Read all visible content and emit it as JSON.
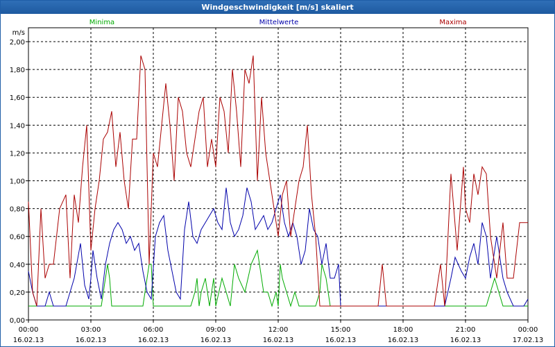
{
  "window": {
    "title": "Windgeschwindigkeit [m/s] skaliert"
  },
  "chart_data": {
    "type": "line",
    "title": "Windgeschwindigkeit [m/s] skaliert",
    "ylabel": "m/s",
    "xlabel": "",
    "ylim": [
      0,
      2.1
    ],
    "xlim_hours": [
      0,
      24
    ],
    "y_ticks": [
      "0,00",
      "0,20",
      "0,40",
      "0,60",
      "0,80",
      "1,00",
      "1,20",
      "1,40",
      "1,60",
      "1,80",
      "2,00"
    ],
    "y_tick_values": [
      0,
      0.2,
      0.4,
      0.6,
      0.8,
      1.0,
      1.2,
      1.4,
      1.6,
      1.8,
      2.0
    ],
    "x_ticks": [
      {
        "time": "00:00",
        "date": "16.02.13"
      },
      {
        "time": "03:00",
        "date": "16.02.13"
      },
      {
        "time": "06:00",
        "date": "16.02.13"
      },
      {
        "time": "09:00",
        "date": "16.02.13"
      },
      {
        "time": "12:00",
        "date": "16.02.13"
      },
      {
        "time": "15:00",
        "date": "16.02.13"
      },
      {
        "time": "18:00",
        "date": "16.02.13"
      },
      {
        "time": "21:00",
        "date": "16.02.13"
      },
      {
        "time": "00:00",
        "date": "17.02.13"
      }
    ],
    "x_tick_hours": [
      0,
      3,
      6,
      9,
      12,
      15,
      18,
      21,
      24
    ],
    "grid": true,
    "series": [
      {
        "name": "Minima",
        "color": "#00aa00",
        "x": [
          0,
          0.2,
          0.5,
          0.8,
          1.0,
          1.5,
          2.0,
          3.5,
          3.8,
          3.9,
          4.0,
          4.3,
          5.5,
          5.8,
          5.9,
          6.0,
          7.8,
          8.0,
          8.1,
          8.2,
          8.3,
          8.5,
          8.7,
          8.9,
          9.0,
          9.3,
          9.5,
          9.7,
          9.9,
          10.1,
          10.4,
          10.7,
          11.0,
          11.3,
          11.5,
          11.7,
          11.9,
          12.0,
          12.1,
          12.2,
          12.4,
          12.6,
          12.8,
          13.0,
          13.8,
          14.0,
          14.1,
          14.3,
          14.5,
          14.6,
          15.0,
          17.0,
          18.0,
          19.5,
          20.0,
          21.2,
          21.4,
          21.6,
          22.0,
          22.4,
          22.6,
          22.8,
          23.0,
          23.4,
          23.6,
          24.0
        ],
        "y": [
          0.1,
          0.1,
          0.1,
          0.1,
          0.1,
          0.1,
          0.1,
          0.1,
          0.4,
          0.3,
          0.1,
          0.1,
          0.1,
          0.4,
          0.4,
          0.1,
          0.1,
          0.2,
          0.3,
          0.1,
          0.2,
          0.3,
          0.1,
          0.3,
          0.1,
          0.3,
          0.2,
          0.1,
          0.4,
          0.3,
          0.2,
          0.4,
          0.5,
          0.2,
          0.2,
          0.1,
          0.2,
          0.1,
          0.4,
          0.3,
          0.2,
          0.1,
          0.2,
          0.1,
          0.1,
          0.2,
          0.4,
          0.3,
          0.1,
          0.1,
          0.1,
          0.1,
          0.1,
          0.1,
          0.1,
          0.1,
          0.1,
          0.1,
          0.1,
          0.3,
          0.2,
          0.1,
          0.1,
          0.1,
          0.1,
          0.1
        ]
      },
      {
        "name": "Mittelwerte",
        "color": "#0000aa",
        "x": [
          0,
          0.2,
          0.4,
          0.6,
          0.8,
          1.0,
          1.2,
          1.5,
          1.8,
          2.0,
          2.2,
          2.5,
          2.7,
          2.9,
          3.0,
          3.1,
          3.3,
          3.5,
          3.7,
          3.9,
          4.1,
          4.3,
          4.5,
          4.7,
          4.9,
          5.1,
          5.3,
          5.5,
          5.7,
          5.9,
          6.1,
          6.3,
          6.5,
          6.7,
          6.9,
          7.1,
          7.3,
          7.5,
          7.7,
          7.9,
          8.1,
          8.3,
          8.5,
          8.7,
          8.9,
          9.1,
          9.3,
          9.5,
          9.7,
          9.9,
          10.1,
          10.3,
          10.5,
          10.7,
          10.9,
          11.1,
          11.3,
          11.5,
          11.7,
          11.9,
          12.1,
          12.3,
          12.5,
          12.7,
          12.9,
          13.1,
          13.3,
          13.5,
          13.7,
          13.9,
          14.1,
          14.3,
          14.5,
          14.7,
          14.9,
          15.0,
          20.0,
          20.3,
          20.5,
          20.8,
          21.0,
          21.2,
          21.4,
          21.6,
          21.8,
          22.0,
          22.2,
          22.5,
          22.8,
          23.0,
          23.3,
          23.6,
          23.8,
          24.0
        ],
        "y": [
          0.35,
          0.2,
          0.1,
          0.1,
          0.1,
          0.2,
          0.1,
          0.1,
          0.1,
          0.2,
          0.3,
          0.55,
          0.25,
          0.15,
          0.3,
          0.5,
          0.3,
          0.15,
          0.4,
          0.55,
          0.65,
          0.7,
          0.65,
          0.55,
          0.6,
          0.5,
          0.55,
          0.35,
          0.2,
          0.15,
          0.6,
          0.7,
          0.75,
          0.5,
          0.35,
          0.2,
          0.15,
          0.65,
          0.85,
          0.6,
          0.55,
          0.65,
          0.7,
          0.75,
          0.8,
          0.7,
          0.65,
          0.95,
          0.7,
          0.6,
          0.65,
          0.75,
          0.95,
          0.85,
          0.65,
          0.7,
          0.75,
          0.65,
          0.7,
          0.8,
          0.9,
          0.7,
          0.6,
          0.7,
          0.6,
          0.4,
          0.5,
          0.8,
          0.65,
          0.6,
          0.4,
          0.55,
          0.3,
          0.3,
          0.4,
          0.1,
          0.1,
          0.3,
          0.45,
          0.35,
          0.3,
          0.45,
          0.55,
          0.4,
          0.7,
          0.6,
          0.3,
          0.6,
          0.3,
          0.2,
          0.1,
          0.1,
          0.1,
          0.15
        ]
      },
      {
        "name": "Maxima",
        "color": "#aa0000",
        "x": [
          0,
          0.2,
          0.4,
          0.6,
          0.8,
          1.0,
          1.2,
          1.5,
          1.8,
          2.0,
          2.2,
          2.4,
          2.6,
          2.8,
          3.0,
          3.2,
          3.4,
          3.6,
          3.8,
          4.0,
          4.2,
          4.4,
          4.6,
          4.8,
          5.0,
          5.2,
          5.4,
          5.6,
          5.8,
          6.0,
          6.2,
          6.4,
          6.6,
          6.8,
          7.0,
          7.2,
          7.4,
          7.6,
          7.8,
          8.0,
          8.2,
          8.4,
          8.6,
          8.8,
          9.0,
          9.2,
          9.4,
          9.6,
          9.8,
          10.0,
          10.2,
          10.4,
          10.6,
          10.8,
          11.0,
          11.2,
          11.4,
          11.6,
          11.8,
          12.0,
          12.2,
          12.4,
          12.6,
          12.8,
          13.0,
          13.2,
          13.4,
          13.6,
          13.8,
          14.0,
          14.2,
          14.4,
          14.6,
          14.8,
          15.0,
          16.8,
          17.0,
          17.2,
          19.5,
          19.8,
          20.0,
          20.3,
          20.6,
          20.9,
          21.0,
          21.2,
          21.4,
          21.6,
          21.8,
          22.0,
          22.2,
          22.5,
          22.8,
          23.0,
          23.3,
          23.6,
          23.8,
          24.0
        ],
        "y": [
          0.85,
          0.2,
          0.1,
          0.8,
          0.3,
          0.4,
          0.4,
          0.8,
          0.9,
          0.3,
          0.9,
          0.7,
          1.1,
          1.4,
          0.5,
          0.8,
          1.0,
          1.3,
          1.35,
          1.5,
          1.1,
          1.35,
          1.0,
          0.8,
          1.3,
          1.3,
          1.9,
          1.8,
          0.4,
          1.2,
          1.1,
          1.4,
          1.7,
          1.4,
          1.0,
          1.6,
          1.5,
          1.2,
          1.1,
          1.3,
          1.5,
          1.6,
          1.1,
          1.3,
          1.1,
          1.6,
          1.5,
          1.2,
          1.8,
          1.5,
          1.1,
          1.8,
          1.7,
          1.9,
          1.0,
          1.6,
          1.2,
          1.0,
          0.8,
          0.6,
          0.9,
          1.0,
          0.6,
          0.8,
          1.0,
          1.1,
          1.4,
          0.9,
          0.6,
          0.1,
          0.1,
          0.1,
          0.1,
          0.1,
          0.1,
          0.1,
          0.4,
          0.1,
          0.1,
          0.4,
          0.1,
          1.05,
          0.5,
          1.1,
          0.8,
          0.7,
          1.05,
          0.9,
          1.1,
          1.05,
          0.6,
          0.3,
          0.7,
          0.3,
          0.3,
          0.7,
          0.7,
          0.7
        ]
      }
    ]
  }
}
